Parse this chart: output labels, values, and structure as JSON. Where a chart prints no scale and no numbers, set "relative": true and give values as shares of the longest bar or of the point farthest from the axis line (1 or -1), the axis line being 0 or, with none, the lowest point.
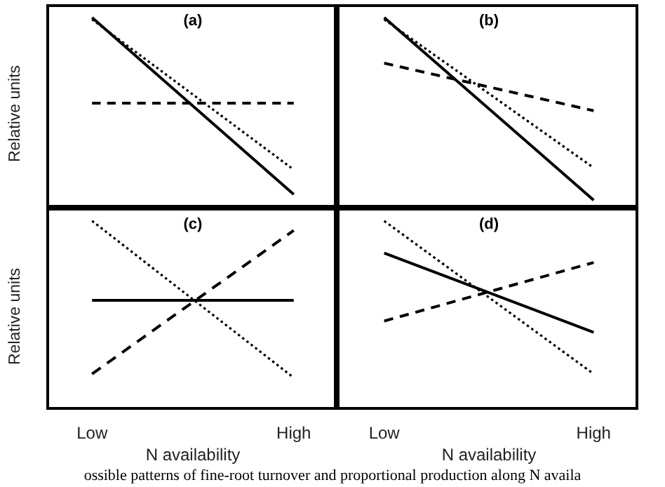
{
  "chart_data": [
    {
      "type": "line",
      "title": "(a)",
      "ylabel": "Relative units",
      "relative": true,
      "categories": [
        null,
        null
      ],
      "tick_labels": false,
      "series": [
        {
          "color": "#000000",
          "line_style": "solid",
          "values": [
            1,
            0.07
          ]
        },
        {
          "color": "#000000",
          "line_style": "dotted",
          "values": [
            0.99,
            0.2
          ]
        },
        {
          "color": "#000000",
          "line_style": "dashed",
          "values": [
            0.55,
            0.55
          ]
        }
      ]
    },
    {
      "type": "line",
      "title": "(b)",
      "relative": true,
      "categories": [
        null,
        null
      ],
      "tick_labels": false,
      "series": [
        {
          "color": "#000000",
          "line_style": "solid",
          "values": [
            1,
            0.04
          ]
        },
        {
          "color": "#000000",
          "line_style": "dotted",
          "values": [
            0.99,
            0.21
          ]
        },
        {
          "color": "#000000",
          "line_style": "dashed",
          "values": [
            0.76,
            0.51
          ]
        }
      ]
    },
    {
      "type": "line",
      "title": "(c)",
      "ylabel": "Relative units",
      "xlabel": "N availability",
      "relative": true,
      "categories": [
        "Low",
        "High"
      ],
      "tick_labels": "x",
      "annotations": [
        "ossible patterns of fine-root turnover and proportional production along N availa"
      ],
      "series": [
        {
          "color": "#000000",
          "line_style": "dotted",
          "values": [
            1,
            0.17
          ]
        },
        {
          "color": "#000000",
          "line_style": "solid",
          "values": [
            0.58,
            0.58
          ]
        },
        {
          "color": "#000000",
          "line_style": "dashed",
          "values": [
            0.19,
            0.95
          ]
        }
      ]
    },
    {
      "type": "line",
      "title": "(d)",
      "xlabel": "N availability",
      "relative": true,
      "categories": [
        "Low",
        "High"
      ],
      "tick_labels": "x",
      "series": [
        {
          "color": "#000000",
          "line_style": "solid",
          "values": [
            0.83,
            0.41
          ]
        },
        {
          "color": "#000000",
          "line_style": "dotted",
          "values": [
            1,
            0.19
          ]
        },
        {
          "color": "#000000",
          "line_style": "dashed",
          "values": [
            0.47,
            0.78
          ]
        }
      ]
    }
  ]
}
